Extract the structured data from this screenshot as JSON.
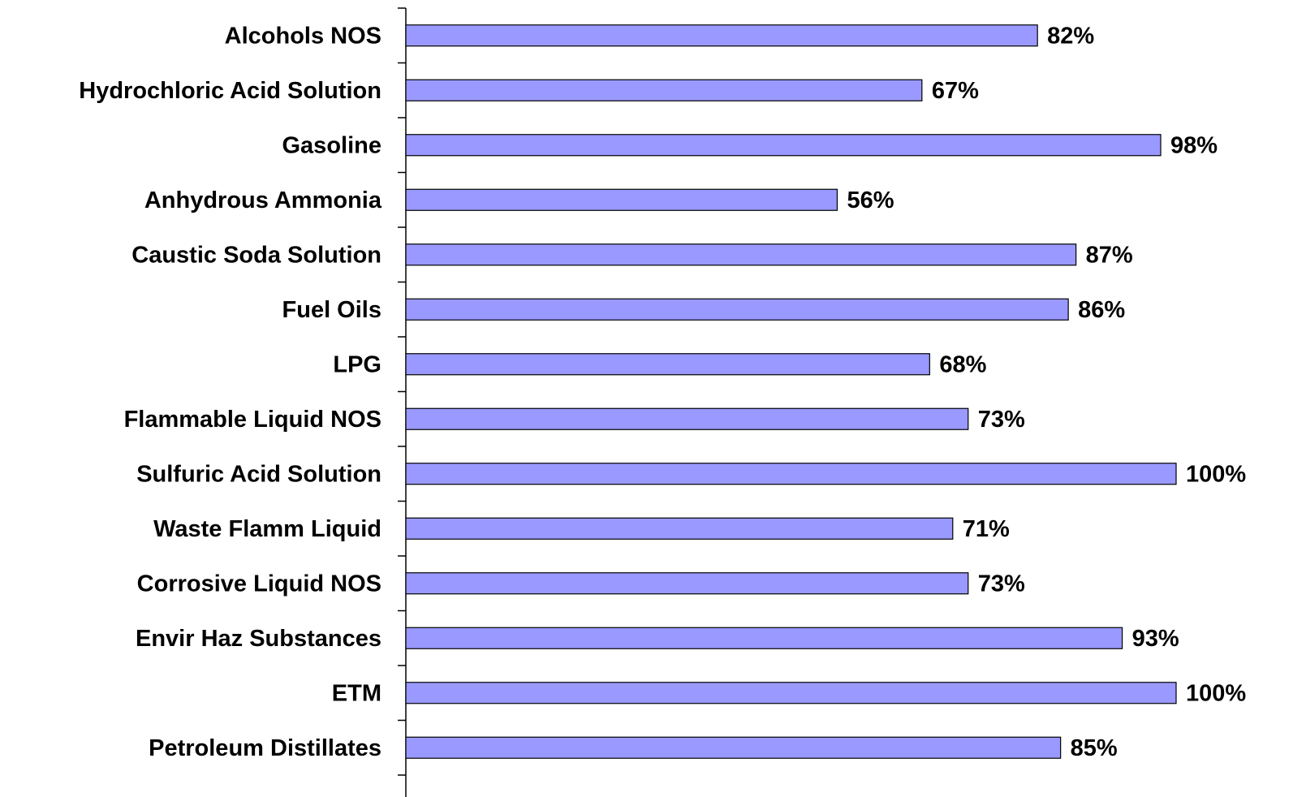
{
  "chart_data": {
    "type": "barh",
    "categories": [
      "Alcohols NOS",
      "Hydrochloric Acid Solution",
      "Gasoline",
      "Anhydrous Ammonia",
      "Caustic Soda Solution",
      "Fuel Oils",
      "LPG",
      "Flammable Liquid NOS",
      "Sulfuric Acid Solution",
      "Waste Flamm Liquid",
      "Corrosive Liquid NOS",
      "Envir Haz Substances",
      "ETM",
      "Petroleum Distillates"
    ],
    "values": [
      82,
      67,
      98,
      56,
      87,
      86,
      68,
      73,
      100,
      71,
      73,
      93,
      100,
      85
    ],
    "value_labels": [
      "82%",
      "67%",
      "98%",
      "56%",
      "87%",
      "86%",
      "68%",
      "73%",
      "100%",
      "71%",
      "73%",
      "93%",
      "100%",
      "85%"
    ],
    "color": "#9999ff",
    "xlim": [
      0,
      100
    ]
  }
}
